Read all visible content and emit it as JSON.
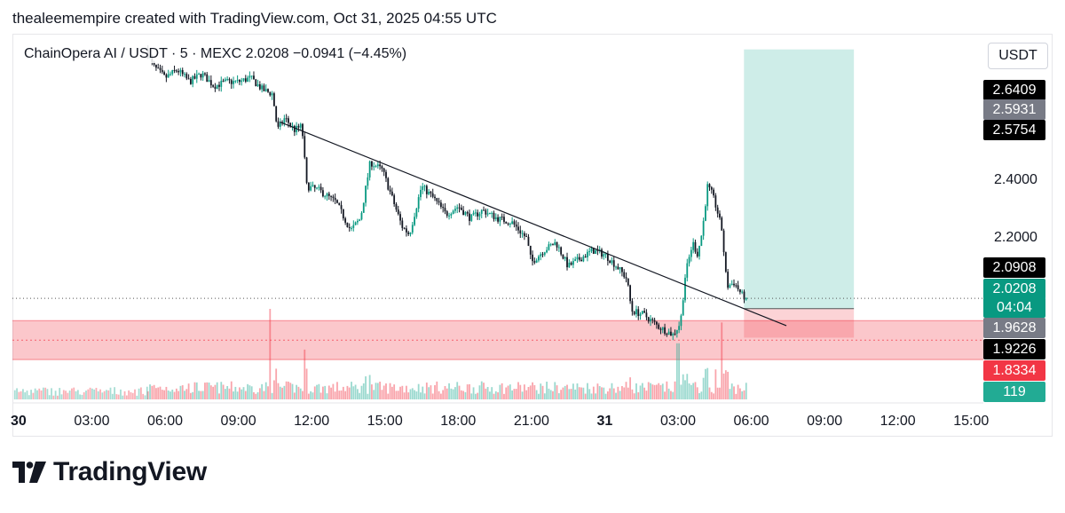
{
  "header": {
    "attribution": "thealeemempire created with TradingView.com, Oct 31, 2025 04:55 UTC"
  },
  "symbol": {
    "text": "ChainOpera AI / USDT · 5 · MEXC  2.0208  −0.0941 (−4.45%)"
  },
  "currency": "USDT",
  "price_axis_labels": [
    "2.4000",
    "2.2000"
  ],
  "tags": [
    {
      "text": "2.6409",
      "bg": "#000000",
      "fg": "#ffffff",
      "price": 2.6409
    },
    {
      "text": "2.5931",
      "bg": "#787b86",
      "fg": "#ffffff",
      "price": 2.5931
    },
    {
      "text": "2.5754",
      "bg": "#000000",
      "fg": "#ffffff",
      "price": 2.5754
    },
    {
      "text": "2.0908",
      "bg": "#000000",
      "fg": "#ffffff",
      "price": 2.0908
    },
    {
      "text": "2.0208",
      "bg": "#089981",
      "fg": "#ffffff",
      "price": 2.0208
    },
    {
      "text": "04:04",
      "bg": "#089981",
      "fg": "#ffffff",
      "price": 1.995
    },
    {
      "text": "1.9628",
      "bg": "#787b86",
      "fg": "#ffffff",
      "price": 1.9628
    },
    {
      "text": "1.9226",
      "bg": "#000000",
      "fg": "#ffffff",
      "price": 1.9226
    },
    {
      "text": "1.8334",
      "bg": "#f23645",
      "fg": "#ffffff",
      "price": 1.8334
    },
    {
      "text": "119",
      "bg": "#22ab94",
      "fg": "#ffffff",
      "price": 1.755
    }
  ],
  "logo": {
    "text": "TradingView"
  },
  "chart_data": {
    "type": "candlestick",
    "x_tick_labels": [
      "30",
      "03:00",
      "06:00",
      "09:00",
      "12:00",
      "15:00",
      "18:00",
      "21:00",
      "31",
      "03:00",
      "06:00",
      "09:00",
      "12:00",
      "15:00"
    ],
    "x_tick_hours": [
      0,
      3,
      6,
      9,
      12,
      15,
      18,
      21,
      24,
      27,
      30,
      33,
      36,
      39
    ],
    "bold_x_ticks": [
      "30",
      "31"
    ],
    "price_range": [
      1.76,
      2.68
    ],
    "hours_range": [
      -0.25,
      39.5
    ],
    "current_price": 2.0208,
    "close_path": [
      {
        "h": 5.3,
        "p": 2.63
      },
      {
        "h": 5.5,
        "p": 2.6
      },
      {
        "h": 6.0,
        "p": 2.57
      },
      {
        "h": 6.5,
        "p": 2.59
      },
      {
        "h": 7.0,
        "p": 2.56
      },
      {
        "h": 7.5,
        "p": 2.58
      },
      {
        "h": 8.0,
        "p": 2.55
      },
      {
        "h": 8.5,
        "p": 2.56
      },
      {
        "h": 9.0,
        "p": 2.56
      },
      {
        "h": 9.5,
        "p": 2.57
      },
      {
        "h": 10.0,
        "p": 2.54
      },
      {
        "h": 10.4,
        "p": 2.53
      },
      {
        "h": 10.6,
        "p": 2.44
      },
      {
        "h": 10.9,
        "p": 2.47
      },
      {
        "h": 11.3,
        "p": 2.44
      },
      {
        "h": 11.6,
        "p": 2.45
      },
      {
        "h": 11.8,
        "p": 2.3
      },
      {
        "h": 12.3,
        "p": 2.29
      },
      {
        "h": 13.0,
        "p": 2.26
      },
      {
        "h": 13.6,
        "p": 2.19
      },
      {
        "h": 14.0,
        "p": 2.22
      },
      {
        "h": 14.4,
        "p": 2.36
      },
      {
        "h": 14.9,
        "p": 2.34
      },
      {
        "h": 15.3,
        "p": 2.27
      },
      {
        "h": 15.7,
        "p": 2.2
      },
      {
        "h": 16.0,
        "p": 2.18
      },
      {
        "h": 16.5,
        "p": 2.3
      },
      {
        "h": 17.0,
        "p": 2.27
      },
      {
        "h": 17.5,
        "p": 2.23
      },
      {
        "h": 18.0,
        "p": 2.25
      },
      {
        "h": 18.5,
        "p": 2.22
      },
      {
        "h": 19.0,
        "p": 2.24
      },
      {
        "h": 19.6,
        "p": 2.22
      },
      {
        "h": 20.2,
        "p": 2.21
      },
      {
        "h": 20.8,
        "p": 2.17
      },
      {
        "h": 21.0,
        "p": 2.11
      },
      {
        "h": 21.5,
        "p": 2.14
      },
      {
        "h": 22.0,
        "p": 2.16
      },
      {
        "h": 22.5,
        "p": 2.1
      },
      {
        "h": 23.0,
        "p": 2.12
      },
      {
        "h": 23.5,
        "p": 2.14
      },
      {
        "h": 24.0,
        "p": 2.13
      },
      {
        "h": 24.5,
        "p": 2.1
      },
      {
        "h": 24.9,
        "p": 2.07
      },
      {
        "h": 25.1,
        "p": 1.99
      },
      {
        "h": 25.6,
        "p": 1.98
      },
      {
        "h": 26.2,
        "p": 1.95
      },
      {
        "h": 26.8,
        "p": 1.93
      },
      {
        "h": 27.1,
        "p": 1.96
      },
      {
        "h": 27.3,
        "p": 2.08
      },
      {
        "h": 27.6,
        "p": 2.16
      },
      {
        "h": 27.8,
        "p": 2.13
      },
      {
        "h": 28.0,
        "p": 2.19
      },
      {
        "h": 28.2,
        "p": 2.3
      },
      {
        "h": 28.4,
        "p": 2.28
      },
      {
        "h": 28.6,
        "p": 2.24
      },
      {
        "h": 28.8,
        "p": 2.19
      },
      {
        "h": 29.0,
        "p": 2.05
      },
      {
        "h": 29.3,
        "p": 2.06
      },
      {
        "h": 29.6,
        "p": 2.03
      },
      {
        "h": 29.8,
        "p": 2.0208
      }
    ],
    "trendline": {
      "start": {
        "h": 10.7,
        "p": 2.46
      },
      "end": {
        "h": 29.8,
        "p": 1.979
      }
    },
    "demand_zone": {
      "top": 1.965,
      "bottom": 1.868,
      "color": "#f23645"
    },
    "position": {
      "start_h": 29.7,
      "end_h": 34.2,
      "target": 2.6409,
      "entry": 1.995,
      "stop": 1.9226,
      "profit_color": "#22ab94",
      "loss_color": "#f23645"
    },
    "volume_spikes": [
      {
        "h": 10.3,
        "v": 1.0
      },
      {
        "h": 11.7,
        "v": 0.55
      },
      {
        "h": 27.0,
        "v": 0.62
      },
      {
        "h": 28.8,
        "v": 0.85
      }
    ]
  }
}
